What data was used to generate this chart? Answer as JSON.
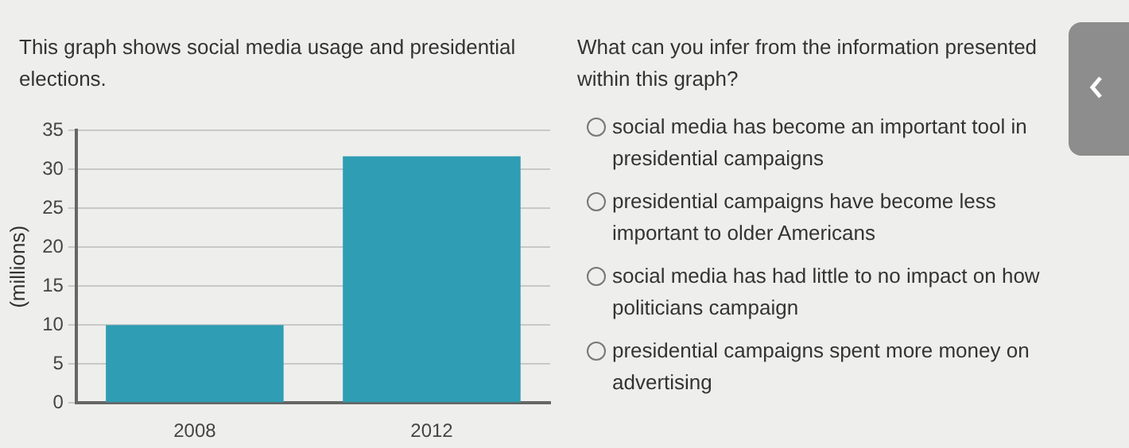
{
  "chart_data": {
    "type": "bar",
    "title": "This graph shows social media usage and presidential elections.",
    "ylabel": "(millions)",
    "categories": [
      "2008",
      "2012"
    ],
    "values": [
      10,
      31.7
    ],
    "color": "#2f9db3",
    "ylim": [
      0,
      35
    ],
    "yticks": [
      0,
      5,
      10,
      15,
      20,
      25,
      30,
      35
    ],
    "grid": "y",
    "legend": false,
    "annotations": [
      "What can you infer from the information presented within this graph?",
      "social media has become an important tool in presidential campaigns",
      "presidential campaigns have become less important to older Americans",
      "social media has had little to no impact on how politicians campaign",
      "presidential campaigns spent more money on advertising"
    ]
  }
}
